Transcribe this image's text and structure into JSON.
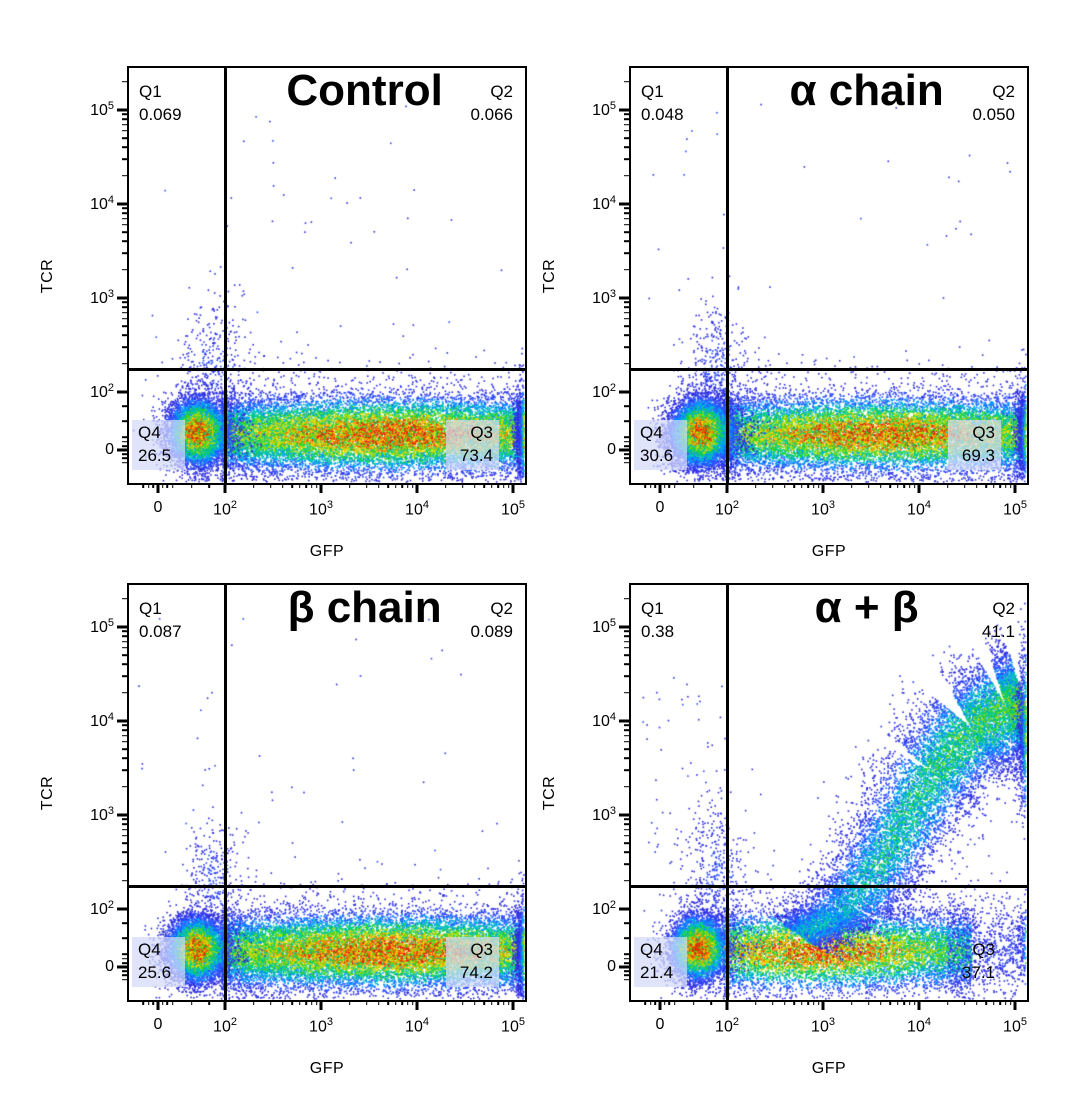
{
  "axes": {
    "x_label": "GFP",
    "y_label": "TCR",
    "x_tick_labels": [
      "0",
      "10^2",
      "10^3",
      "10^4",
      "10^5"
    ],
    "y_tick_labels": [
      "0",
      "10^2",
      "10^3",
      "10^4",
      "10^5"
    ]
  },
  "colors": {
    "gate": "#000000",
    "quadrant_box": "rgba(210,217,248,0.72)",
    "density_low": "#2d2de1",
    "density_high": "#e61e00"
  },
  "chart_data": {
    "type": "scatter",
    "subtype": "flow-cytometry pseudocolor density plots",
    "layout": "2x2",
    "x_scale": "biexponential: 0, 10^2, 10^3, 10^4, 10^5",
    "y_scale": "biexponential: 0, 10^2, 10^3, 10^4, 10^5",
    "gate_u": {
      "x": 1.0,
      "y": 1.25
    },
    "panels": [
      {
        "title": "Control",
        "quadrants": [
          {
            "label": "Q1",
            "value": "0.069",
            "boxed": false
          },
          {
            "label": "Q2",
            "value": "0.066",
            "boxed": false
          },
          {
            "label": "Q4",
            "value": "26.5",
            "boxed": true
          },
          {
            "label": "Q3",
            "value": "73.4",
            "boxed": true
          }
        ],
        "render_populations": [
          {
            "type": "sparse",
            "name": "upper-scatter",
            "ux0": -0.3,
            "ux1": 4.0,
            "uy0": 1.35,
            "uy1": 4.1,
            "n": 40
          },
          {
            "type": "blob",
            "name": "gate-plume",
            "ux": 0.85,
            "uy": 1.3,
            "sx": 0.22,
            "sy": 0.33,
            "n": 320,
            "peak": 0.14
          },
          {
            "type": "band",
            "name": "gfp-positive-band",
            "ux0": 0.95,
            "ux1": 4.08,
            "uy": 0.27,
            "sy": 0.34,
            "base": 0.4,
            "amp": 0.58,
            "hot": 2.7,
            "hotw": 1.05,
            "n": 16500
          },
          {
            "type": "blob",
            "name": "gfp-negative-cluster",
            "ux": 0.6,
            "uy": 0.3,
            "sx": 0.23,
            "sy": 0.3,
            "n": 7200,
            "peak": 1.0
          },
          {
            "type": "edge",
            "name": "right-edge-pileup",
            "ux": 4.12,
            "w": 0.05,
            "uy": 0.28,
            "sy": 0.4,
            "n": 850,
            "peak": 1.0
          }
        ]
      },
      {
        "title": "α chain",
        "quadrants": [
          {
            "label": "Q1",
            "value": "0.048",
            "boxed": false
          },
          {
            "label": "Q2",
            "value": "0.050",
            "boxed": false
          },
          {
            "label": "Q4",
            "value": "30.6",
            "boxed": true
          },
          {
            "label": "Q3",
            "value": "69.3",
            "boxed": true
          }
        ],
        "render_populations": [
          {
            "type": "sparse",
            "name": "upper-scatter",
            "ux0": -0.3,
            "ux1": 4.0,
            "uy0": 1.35,
            "uy1": 4.1,
            "n": 34
          },
          {
            "type": "blob",
            "name": "gate-plume",
            "ux": 0.85,
            "uy": 1.3,
            "sx": 0.22,
            "sy": 0.33,
            "n": 360,
            "peak": 0.14
          },
          {
            "type": "band",
            "name": "gfp-positive-band",
            "ux0": 0.95,
            "ux1": 4.08,
            "uy": 0.27,
            "sy": 0.34,
            "base": 0.4,
            "amp": 0.55,
            "hot": 2.6,
            "hotw": 1.05,
            "n": 15200
          },
          {
            "type": "blob",
            "name": "gfp-negative-cluster",
            "ux": 0.62,
            "uy": 0.3,
            "sx": 0.24,
            "sy": 0.3,
            "n": 8600,
            "peak": 1.0
          },
          {
            "type": "edge",
            "name": "right-edge-pileup",
            "ux": 4.12,
            "w": 0.05,
            "uy": 0.28,
            "sy": 0.4,
            "n": 800,
            "peak": 1.0
          }
        ]
      },
      {
        "title": "β chain",
        "quadrants": [
          {
            "label": "Q1",
            "value": "0.087",
            "boxed": false
          },
          {
            "label": "Q2",
            "value": "0.089",
            "boxed": false
          },
          {
            "label": "Q4",
            "value": "25.6",
            "boxed": true
          },
          {
            "label": "Q3",
            "value": "74.2",
            "boxed": true
          }
        ],
        "render_populations": [
          {
            "type": "sparse",
            "name": "upper-scatter",
            "ux0": -0.3,
            "ux1": 4.0,
            "uy0": 1.35,
            "uy1": 4.1,
            "n": 44
          },
          {
            "type": "blob",
            "name": "gate-plume",
            "ux": 0.85,
            "uy": 1.3,
            "sx": 0.22,
            "sy": 0.33,
            "n": 300,
            "peak": 0.14
          },
          {
            "type": "band",
            "name": "gfp-positive-band",
            "ux0": 0.95,
            "ux1": 4.08,
            "uy": 0.27,
            "sy": 0.34,
            "base": 0.4,
            "amp": 0.58,
            "hot": 2.7,
            "hotw": 1.05,
            "n": 16800
          },
          {
            "type": "blob",
            "name": "gfp-negative-cluster",
            "ux": 0.59,
            "uy": 0.3,
            "sx": 0.23,
            "sy": 0.29,
            "n": 7000,
            "peak": 1.0
          },
          {
            "type": "edge",
            "name": "right-edge-pileup",
            "ux": 4.12,
            "w": 0.05,
            "uy": 0.28,
            "sy": 0.4,
            "n": 850,
            "peak": 1.0
          }
        ]
      },
      {
        "title": "α + β",
        "quadrants": [
          {
            "label": "Q1",
            "value": "0.38",
            "boxed": false
          },
          {
            "label": "Q2",
            "value": "41.1",
            "boxed": false
          },
          {
            "label": "Q4",
            "value": "21.4",
            "boxed": true
          },
          {
            "label": "Q3",
            "value": "37.1",
            "boxed": false
          }
        ],
        "render_populations": [
          {
            "type": "sparse",
            "name": "q1-scatter",
            "ux0": -0.3,
            "ux1": 1.0,
            "uy0": 1.35,
            "uy1": 3.5,
            "n": 60
          },
          {
            "type": "sparse",
            "name": "q3-scatter",
            "ux0": 2.5,
            "ux1": 4.1,
            "uy0": -0.2,
            "uy1": 1.2,
            "n": 260
          },
          {
            "type": "blob",
            "name": "gate-plume",
            "ux": 0.85,
            "uy": 1.35,
            "sx": 0.22,
            "sy": 0.4,
            "n": 420,
            "peak": 0.15
          },
          {
            "type": "band",
            "name": "gfp-positive-band",
            "ux0": 0.95,
            "ux1": 3.55,
            "uy": 0.27,
            "sy": 0.35,
            "base": 0.32,
            "amp": 0.62,
            "hot": 1.95,
            "hotw": 0.9,
            "n": 9200
          },
          {
            "type": "band",
            "name": "band-tail",
            "ux0": 3.3,
            "ux1": 4.08,
            "uy": 0.3,
            "sy": 0.42,
            "base": 0.1,
            "amp": 0.0,
            "hot": 3.5,
            "hotw": 1.0,
            "n": 700
          },
          {
            "type": "arc",
            "name": "double-positive-arc",
            "points": [
              [
                1.75,
                0.55
              ],
              [
                2.3,
                1.05
              ],
              [
                2.75,
                1.75
              ],
              [
                3.15,
                2.45
              ],
              [
                3.55,
                2.92
              ],
              [
                3.92,
                3.12
              ],
              [
                4.11,
                3.18
              ]
            ],
            "w0": 0.2,
            "w1": 0.3,
            "p0": 0.3,
            "p1": 0.6,
            "n": 14500
          },
          {
            "type": "blob",
            "name": "gfp-negative-cluster",
            "ux": 0.58,
            "uy": 0.32,
            "sx": 0.22,
            "sy": 0.29,
            "n": 5600,
            "peak": 1.0
          },
          {
            "type": "edge",
            "name": "right-edge-upper-pileup",
            "ux": 4.12,
            "w": 0.05,
            "uy": 2.9,
            "sy": 0.42,
            "n": 700,
            "peak": 1.0
          },
          {
            "type": "edge",
            "name": "right-edge-lower-pileup",
            "ux": 4.12,
            "w": 0.05,
            "uy": 0.35,
            "sy": 0.35,
            "n": 130,
            "peak": 0.6
          }
        ]
      }
    ]
  }
}
